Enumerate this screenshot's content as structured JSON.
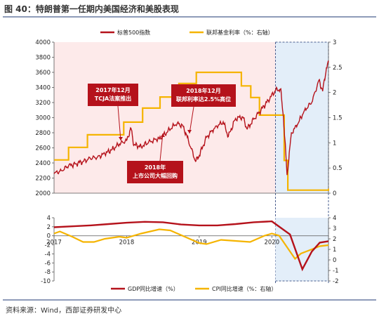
{
  "figure_title": "图 40：特朗普第一任期内美国经济和美股表现",
  "source": "资料来源：Wind，西部证券研发中心",
  "colors": {
    "spx": "#b5121b",
    "fed": "#f5b400",
    "gdp": "#b5121b",
    "cpi": "#f5b400",
    "shade_pre": "#fdeaea",
    "shade_covid": "#e3eef9",
    "annotation_bg": "#b5121b",
    "divider": "#4a5f8f"
  },
  "chart_data": [
    {
      "type": "line",
      "x_range": [
        2017.0,
        2020.78
      ],
      "ylim": [
        2000,
        4000
      ],
      "y_ticks": [
        2000,
        2200,
        2400,
        2600,
        2800,
        3000,
        3200,
        3400,
        3600,
        3800,
        4000
      ],
      "y2lim": [
        0,
        3
      ],
      "y2_ticks": [
        "0",
        "0.5",
        "1",
        "1.5",
        "2",
        "2.5",
        "3"
      ],
      "x_ticks": [
        {
          "x": 2017.0,
          "label": "2017"
        },
        {
          "x": 2018.0,
          "label": "2018"
        },
        {
          "x": 2019.0,
          "label": "2019"
        },
        {
          "x": 2020.0,
          "label": "2020"
        }
      ],
      "covid_shade_start": 2020.05,
      "series": [
        {
          "name": "标普500指数",
          "axis": "left",
          "points": [
            [
              2017.0,
              2258
            ],
            [
              2017.1,
              2300
            ],
            [
              2017.2,
              2360
            ],
            [
              2017.3,
              2390
            ],
            [
              2017.4,
              2420
            ],
            [
              2017.5,
              2460
            ],
            [
              2017.6,
              2480
            ],
            [
              2017.7,
              2520
            ],
            [
              2017.8,
              2580
            ],
            [
              2017.9,
              2650
            ],
            [
              2018.0,
              2700
            ],
            [
              2018.06,
              2860
            ],
            [
              2018.1,
              2640
            ],
            [
              2018.2,
              2620
            ],
            [
              2018.3,
              2670
            ],
            [
              2018.45,
              2720
            ],
            [
              2018.55,
              2800
            ],
            [
              2018.7,
              2930
            ],
            [
              2018.78,
              2880
            ],
            [
              2018.85,
              2700
            ],
            [
              2018.95,
              2420
            ],
            [
              2019.0,
              2500
            ],
            [
              2019.1,
              2740
            ],
            [
              2019.2,
              2850
            ],
            [
              2019.33,
              2945
            ],
            [
              2019.4,
              2750
            ],
            [
              2019.5,
              2990
            ],
            [
              2019.6,
              3010
            ],
            [
              2019.66,
              2850
            ],
            [
              2019.75,
              2980
            ],
            [
              2019.85,
              3100
            ],
            [
              2019.95,
              3230
            ],
            [
              2020.05,
              3360
            ],
            [
              2020.12,
              3380
            ],
            [
              2020.16,
              3000
            ],
            [
              2020.21,
              2240
            ],
            [
              2020.27,
              2800
            ],
            [
              2020.35,
              2900
            ],
            [
              2020.45,
              3100
            ],
            [
              2020.55,
              3200
            ],
            [
              2020.65,
              3500
            ],
            [
              2020.7,
              3350
            ],
            [
              2020.75,
              3650
            ],
            [
              2020.78,
              3730
            ]
          ]
        },
        {
          "name": "联邦基金利率（%：右轴）",
          "axis": "right",
          "step_points": [
            [
              2017.0,
              0.66
            ],
            [
              2017.2,
              0.91
            ],
            [
              2017.46,
              1.16
            ],
            [
              2017.96,
              1.41
            ],
            [
              2018.22,
              1.69
            ],
            [
              2018.46,
              1.91
            ],
            [
              2018.72,
              2.18
            ],
            [
              2018.96,
              2.4
            ],
            [
              2019.58,
              2.13
            ],
            [
              2019.71,
              1.9
            ],
            [
              2019.83,
              1.55
            ],
            [
              2020.17,
              0.65
            ],
            [
              2020.22,
              0.06
            ],
            [
              2020.78,
              0.09
            ]
          ]
        }
      ],
      "annotations": [
        {
          "lines": [
            "2017年12月",
            "TCJA法案推出"
          ]
        },
        {
          "lines": [
            "2018年12月",
            "联邦利率达2.5%高位"
          ]
        },
        {
          "lines": [
            "2018年",
            "上市公司大幅回购"
          ]
        }
      ]
    },
    {
      "type": "line",
      "x_range": [
        2017.0,
        2020.78
      ],
      "ylim": [
        -10,
        4
      ],
      "y_ticks": [
        4,
        2,
        0,
        -2,
        -4,
        -6,
        -8,
        -10
      ],
      "y2lim": [
        -2,
        4
      ],
      "y2_ticks": [
        4,
        3,
        2,
        1,
        0,
        -1,
        -2
      ],
      "series": [
        {
          "name": "GDP同比增速（%）",
          "axis": "left",
          "points": [
            [
              2017.0,
              1.9
            ],
            [
              2017.25,
              2.1
            ],
            [
              2017.5,
              2.3
            ],
            [
              2017.75,
              2.6
            ],
            [
              2018.0,
              2.9
            ],
            [
              2018.25,
              3.1
            ],
            [
              2018.5,
              3.0
            ],
            [
              2018.75,
              2.5
            ],
            [
              2019.0,
              2.3
            ],
            [
              2019.25,
              2.3
            ],
            [
              2019.5,
              2.6
            ],
            [
              2019.75,
              3.0
            ],
            [
              2020.0,
              3.2
            ],
            [
              2020.25,
              0.3
            ],
            [
              2020.42,
              -7.4
            ],
            [
              2020.55,
              -3.5
            ],
            [
              2020.66,
              -1.5
            ],
            [
              2020.78,
              -1.2
            ]
          ]
        },
        {
          "name": "CPI同比增速（%：右轴）",
          "axis": "right",
          "points": [
            [
              2017.0,
              2.5
            ],
            [
              2017.08,
              2.7
            ],
            [
              2017.25,
              2.2
            ],
            [
              2017.4,
              1.7
            ],
            [
              2017.55,
              1.7
            ],
            [
              2017.7,
              2.0
            ],
            [
              2017.9,
              2.2
            ],
            [
              2018.0,
              2.1
            ],
            [
              2018.2,
              2.5
            ],
            [
              2018.45,
              2.9
            ],
            [
              2018.6,
              2.8
            ],
            [
              2018.8,
              2.2
            ],
            [
              2019.0,
              1.6
            ],
            [
              2019.1,
              1.5
            ],
            [
              2019.3,
              1.9
            ],
            [
              2019.5,
              1.8
            ],
            [
              2019.7,
              1.7
            ],
            [
              2019.9,
              2.3
            ],
            [
              2020.0,
              2.5
            ],
            [
              2020.1,
              2.3
            ],
            [
              2020.25,
              0.8
            ],
            [
              2020.32,
              0.1
            ],
            [
              2020.4,
              0.6
            ],
            [
              2020.55,
              1.0
            ],
            [
              2020.66,
              1.3
            ],
            [
              2020.78,
              1.4
            ]
          ]
        }
      ]
    }
  ]
}
